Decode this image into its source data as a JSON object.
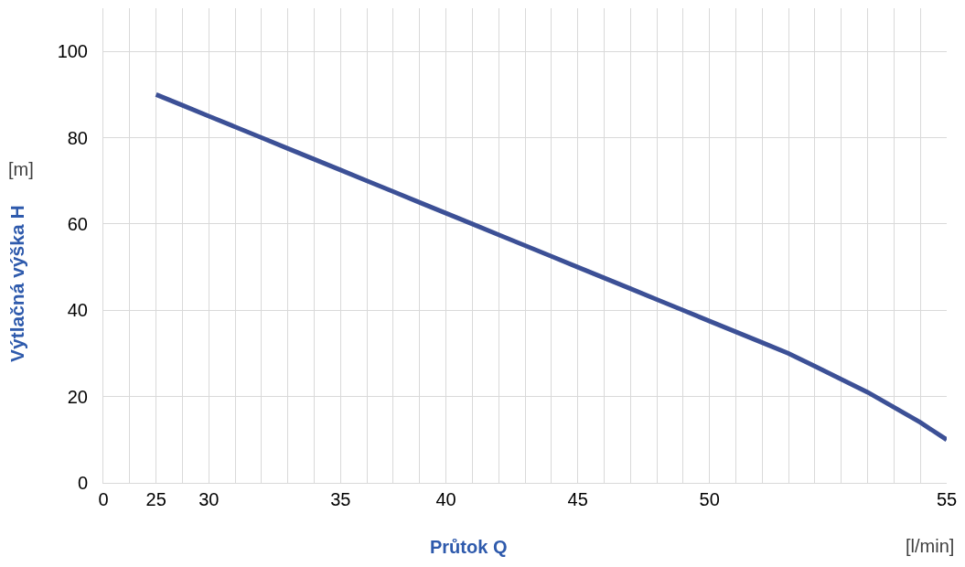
{
  "chart_data": {
    "type": "line",
    "xlabel": "Průtok Q",
    "ylabel": "Výtlačná výška H",
    "annotations": [
      "[m]",
      "[l/min]"
    ],
    "categories": [
      "0",
      null,
      "25",
      null,
      "30",
      null,
      null,
      null,
      null,
      "35",
      null,
      null,
      null,
      "40",
      null,
      null,
      null,
      null,
      "45",
      null,
      null,
      null,
      null,
      "50",
      null,
      null,
      null,
      null,
      null,
      null,
      null,
      null,
      "55"
    ],
    "series": [
      {
        "color": "#3c5096",
        "values": [
          null,
          null,
          90,
          87.5,
          85,
          82.5,
          80,
          77.5,
          75,
          72.5,
          70,
          67.5,
          65,
          62.5,
          60,
          57.5,
          55,
          52.5,
          50,
          47.5,
          45,
          42.5,
          40,
          37.5,
          35,
          32.5,
          30,
          27,
          24,
          21,
          17.5,
          14,
          10
        ]
      }
    ],
    "ylim": [
      0,
      110
    ],
    "yticks": [
      0,
      20,
      40,
      60,
      80,
      100
    ],
    "grid": true
  }
}
